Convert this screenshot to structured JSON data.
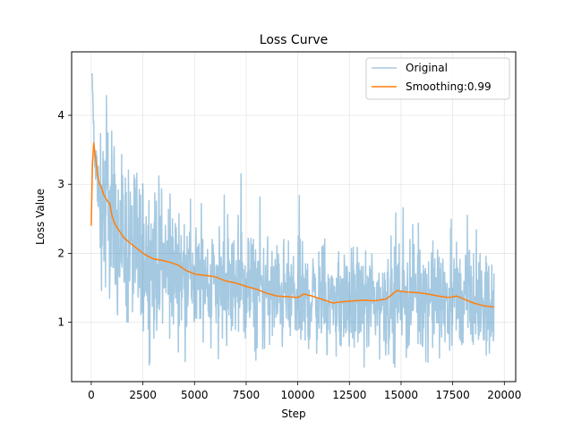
{
  "chart_data": {
    "type": "line",
    "title": "Loss Curve",
    "xlabel": "Step",
    "ylabel": "Loss Value",
    "xlim": [
      -950,
      20550
    ],
    "ylim": [
      0.14,
      4.92
    ],
    "xticks": [
      0,
      2500,
      5000,
      7500,
      10000,
      12500,
      15000,
      17500,
      20000
    ],
    "yticks": [
      1,
      2,
      3,
      4
    ],
    "grid": true,
    "legend_position": "top-right",
    "series": [
      {
        "name": "Original",
        "color": "#1f77b4",
        "opacity": 0.4,
        "style": "noisy",
        "x_start": 0,
        "x_end": 19500,
        "samples": 1300,
        "min": 0.35,
        "max": 4.6,
        "anchors": [
          {
            "x": 0,
            "y": 4.55
          },
          {
            "x": 50,
            "y": 4.6
          },
          {
            "x": 150,
            "y": 3.6
          },
          {
            "x": 300,
            "y": 3.0
          },
          {
            "x": 600,
            "y": 2.75
          },
          {
            "x": 1000,
            "y": 2.35
          },
          {
            "x": 2000,
            "y": 2.05
          },
          {
            "x": 3000,
            "y": 1.9
          },
          {
            "x": 4000,
            "y": 1.8
          },
          {
            "x": 5000,
            "y": 1.65
          },
          {
            "x": 6000,
            "y": 1.6
          },
          {
            "x": 7000,
            "y": 1.55
          },
          {
            "x": 8000,
            "y": 1.45
          },
          {
            "x": 9000,
            "y": 1.4
          },
          {
            "x": 10000,
            "y": 1.35
          },
          {
            "x": 11000,
            "y": 1.35
          },
          {
            "x": 12000,
            "y": 1.3
          },
          {
            "x": 13000,
            "y": 1.3
          },
          {
            "x": 14000,
            "y": 1.3
          },
          {
            "x": 15000,
            "y": 1.4
          },
          {
            "x": 16000,
            "y": 1.4
          },
          {
            "x": 17000,
            "y": 1.35
          },
          {
            "x": 18000,
            "y": 1.3
          },
          {
            "x": 19500,
            "y": 1.2
          }
        ]
      },
      {
        "name": "Smoothing:0.99",
        "color": "#ff7f0e",
        "points": [
          [
            0,
            2.4
          ],
          [
            60,
            3.3
          ],
          [
            120,
            3.6
          ],
          [
            200,
            3.4
          ],
          [
            300,
            3.15
          ],
          [
            400,
            3.0
          ],
          [
            500,
            2.95
          ],
          [
            600,
            2.85
          ],
          [
            700,
            2.8
          ],
          [
            800,
            2.75
          ],
          [
            900,
            2.72
          ],
          [
            1000,
            2.55
          ],
          [
            1100,
            2.45
          ],
          [
            1300,
            2.35
          ],
          [
            1600,
            2.22
          ],
          [
            2000,
            2.12
          ],
          [
            2300,
            2.05
          ],
          [
            2600,
            1.98
          ],
          [
            3000,
            1.92
          ],
          [
            3400,
            1.9
          ],
          [
            3800,
            1.87
          ],
          [
            4200,
            1.83
          ],
          [
            4600,
            1.75
          ],
          [
            5000,
            1.7
          ],
          [
            5500,
            1.68
          ],
          [
            6000,
            1.66
          ],
          [
            6500,
            1.6
          ],
          [
            7000,
            1.57
          ],
          [
            7500,
            1.52
          ],
          [
            8000,
            1.48
          ],
          [
            8500,
            1.42
          ],
          [
            9000,
            1.38
          ],
          [
            9500,
            1.37
          ],
          [
            10000,
            1.36
          ],
          [
            10300,
            1.41
          ],
          [
            10700,
            1.38
          ],
          [
            11200,
            1.33
          ],
          [
            11700,
            1.28
          ],
          [
            12200,
            1.3
          ],
          [
            12700,
            1.31
          ],
          [
            13200,
            1.32
          ],
          [
            13700,
            1.31
          ],
          [
            14300,
            1.34
          ],
          [
            14800,
            1.46
          ],
          [
            15200,
            1.44
          ],
          [
            15800,
            1.43
          ],
          [
            16300,
            1.41
          ],
          [
            16800,
            1.38
          ],
          [
            17300,
            1.36
          ],
          [
            17700,
            1.38
          ],
          [
            18100,
            1.33
          ],
          [
            18500,
            1.28
          ],
          [
            19000,
            1.24
          ],
          [
            19500,
            1.22
          ]
        ]
      }
    ]
  }
}
